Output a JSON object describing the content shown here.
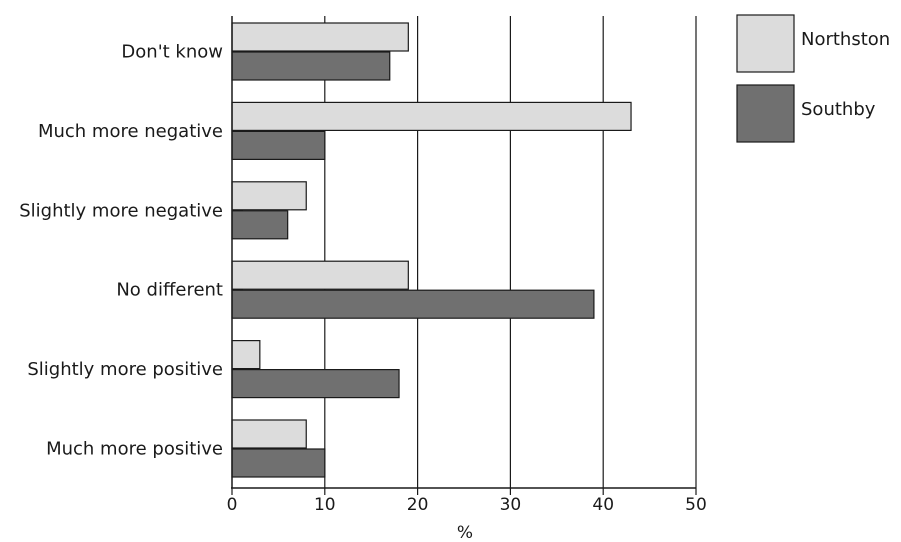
{
  "chart_data": {
    "type": "bar",
    "orientation": "horizontal",
    "categories": [
      "Don't know",
      "Much more negative",
      "Slightly more negative",
      "No different",
      "Slightly more positive",
      "Much more positive"
    ],
    "series": [
      {
        "name": "Northston",
        "values": [
          19,
          43,
          8,
          19,
          3,
          8
        ],
        "color": "#dcdcdc"
      },
      {
        "name": "Southby",
        "values": [
          17,
          10,
          6,
          39,
          18,
          10
        ],
        "color": "#707070"
      }
    ],
    "xlabel": "%",
    "xlim": [
      0,
      50
    ],
    "xticks": [
      0,
      10,
      20,
      30,
      40,
      50
    ],
    "grid": "vertical",
    "legend": "top-right"
  }
}
